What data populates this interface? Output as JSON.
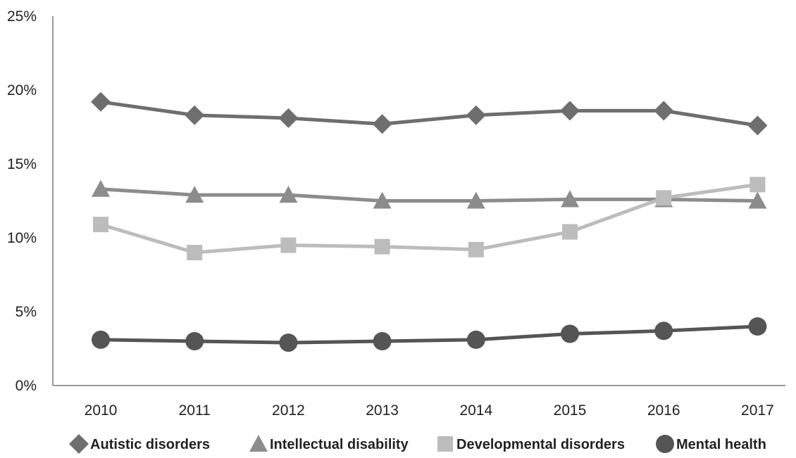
{
  "chart_data": {
    "type": "line",
    "title": "",
    "xlabel": "",
    "ylabel": "",
    "x": [
      "2010",
      "2011",
      "2012",
      "2013",
      "2014",
      "2015",
      "2016",
      "2017"
    ],
    "ylim": [
      0,
      25
    ],
    "y_ticks": [
      0,
      5,
      10,
      15,
      20,
      25
    ],
    "y_tick_labels": [
      "0%",
      "5%",
      "10%",
      "15%",
      "20%",
      "25%"
    ],
    "grid": false,
    "legend_position": "bottom",
    "series": [
      {
        "name": "Autistic disorders",
        "marker": "diamond",
        "color": "#6e6e6e",
        "values": [
          19.2,
          18.3,
          18.1,
          17.7,
          18.3,
          18.6,
          18.6,
          17.6
        ]
      },
      {
        "name": "Intellectual disability",
        "marker": "triangle",
        "color": "#8c8c8c",
        "values": [
          13.3,
          12.9,
          12.9,
          12.5,
          12.5,
          12.6,
          12.6,
          12.5
        ]
      },
      {
        "name": "Developmental disorders",
        "marker": "square",
        "color": "#bcbcbc",
        "values": [
          10.9,
          9.0,
          9.5,
          9.4,
          9.2,
          10.4,
          12.7,
          13.6
        ]
      },
      {
        "name": "Mental health",
        "marker": "circle",
        "color": "#555555",
        "values": [
          3.1,
          3.0,
          2.9,
          3.0,
          3.1,
          3.5,
          3.7,
          4.0
        ]
      }
    ]
  }
}
